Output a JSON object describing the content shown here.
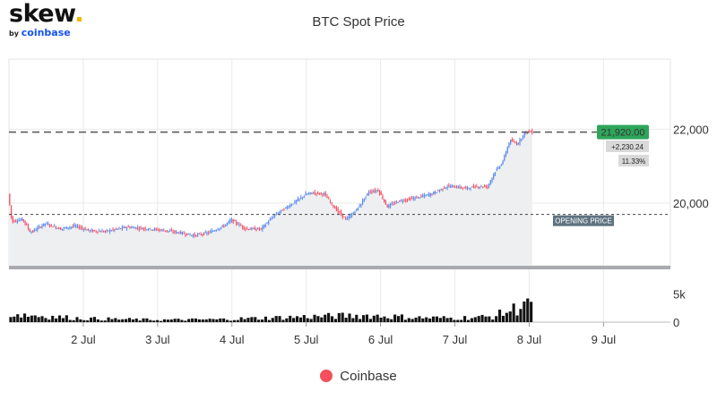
{
  "logo": {
    "word": "skew",
    "by": "by",
    "brand": "coinbase"
  },
  "chart_data": {
    "type": "candlestick",
    "title": "BTC Spot Price",
    "exchange": "Coinbase",
    "x_ticks": [
      "2 Jul",
      "3 Jul",
      "4 Jul",
      "5 Jul",
      "6 Jul",
      "7 Jul",
      "8 Jul",
      "9 Jul"
    ],
    "y_ticks": [
      "20,000",
      "22,000"
    ],
    "y_tick_values": [
      20000,
      22000
    ],
    "ylim": [
      18300,
      23900
    ],
    "volume_ticks": [
      "0",
      "5k"
    ],
    "volume_tick_values": [
      0,
      5000
    ],
    "volume_ylim": [
      0,
      8200
    ],
    "x_start_day": 1.0,
    "x_end_day": 9.9,
    "last_price": 21920,
    "last_price_label": "21,920.00",
    "change_label": "+2,230.24",
    "change_pct_label": "11.33%",
    "opening_price": 19690,
    "opening_price_label": "OPENING PRICE",
    "price_keypoints": [
      [
        1.0,
        20250
      ],
      [
        1.05,
        19500
      ],
      [
        1.2,
        19560
      ],
      [
        1.3,
        19200
      ],
      [
        1.5,
        19450
      ],
      [
        1.7,
        19300
      ],
      [
        1.9,
        19380
      ],
      [
        2.1,
        19250
      ],
      [
        2.3,
        19230
      ],
      [
        2.6,
        19350
      ],
      [
        2.9,
        19300
      ],
      [
        3.1,
        19260
      ],
      [
        3.3,
        19200
      ],
      [
        3.5,
        19120
      ],
      [
        3.7,
        19200
      ],
      [
        3.9,
        19380
      ],
      [
        4.0,
        19540
      ],
      [
        4.2,
        19300
      ],
      [
        4.4,
        19300
      ],
      [
        4.6,
        19700
      ],
      [
        4.8,
        19950
      ],
      [
        5.0,
        20230
      ],
      [
        5.1,
        20280
      ],
      [
        5.25,
        20250
      ],
      [
        5.4,
        19850
      ],
      [
        5.55,
        19550
      ],
      [
        5.7,
        19850
      ],
      [
        5.85,
        20300
      ],
      [
        5.98,
        20350
      ],
      [
        6.1,
        19900
      ],
      [
        6.25,
        20050
      ],
      [
        6.5,
        20150
      ],
      [
        6.7,
        20250
      ],
      [
        6.9,
        20450
      ],
      [
        7.0,
        20450
      ],
      [
        7.15,
        20400
      ],
      [
        7.3,
        20450
      ],
      [
        7.45,
        20450
      ],
      [
        7.55,
        20850
      ],
      [
        7.65,
        21100
      ],
      [
        7.75,
        21700
      ],
      [
        7.85,
        21600
      ],
      [
        7.95,
        21900
      ],
      [
        8.0,
        21950
      ],
      [
        8.05,
        21920
      ]
    ],
    "volume_profile": [
      [
        1.0,
        1900
      ],
      [
        1.5,
        1300
      ],
      [
        2.0,
        800
      ],
      [
        3.0,
        500
      ],
      [
        3.8,
        600
      ],
      [
        4.6,
        1000
      ],
      [
        5.0,
        1200
      ],
      [
        5.8,
        1500
      ],
      [
        6.5,
        1000
      ],
      [
        7.0,
        900
      ],
      [
        7.5,
        1200
      ],
      [
        7.7,
        2300
      ],
      [
        7.85,
        3200
      ],
      [
        7.95,
        5200
      ],
      [
        8.05,
        2300
      ]
    ]
  }
}
